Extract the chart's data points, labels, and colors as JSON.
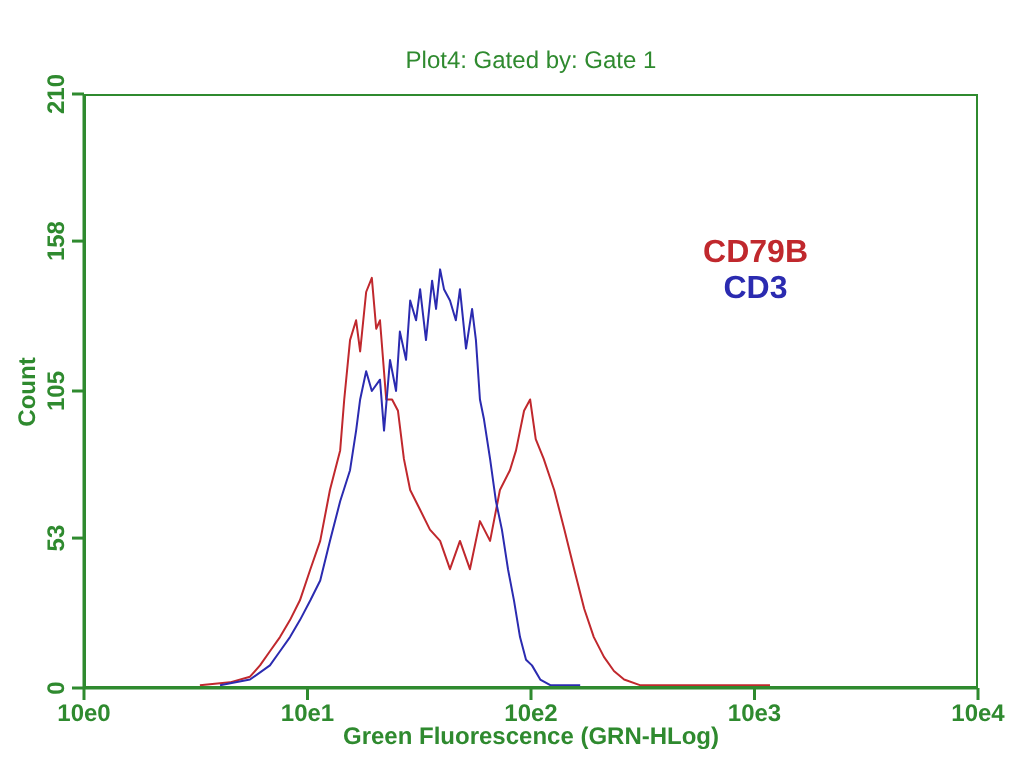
{
  "chart_data": {
    "type": "line",
    "title": "Plot4:  Gated by: Gate 1",
    "xlabel": "Green Fluorescence (GRN-HLog)",
    "ylabel": "Count",
    "log": "x",
    "xlim": [
      10,
      100000
    ],
    "xticks": [
      {
        "value": 10,
        "label": "10e0"
      },
      {
        "value": 100,
        "label": "10e1"
      },
      {
        "value": 1000,
        "label": "10e2"
      },
      {
        "value": 10000,
        "label": "10e3"
      },
      {
        "value": 100000,
        "label": "10e4"
      }
    ],
    "ylim": [
      0,
      210
    ],
    "yticks": [
      0,
      53,
      105,
      158,
      210
    ],
    "grid": false,
    "legend": "top right",
    "marker": "none",
    "line_style": "solid",
    "series": [
      {
        "name": "CD79B",
        "color": "#c0282d",
        "x": [
          33,
          45,
          55.3,
          61.3,
          67.9,
          75.3,
          83.5,
          92.5,
          103,
          114,
          126,
          140,
          146,
          155,
          165,
          172,
          183,
          194,
          203,
          211,
          225,
          239,
          254,
          270,
          288,
          319,
          353,
          392,
          434,
          481,
          533,
          591,
          656,
          726,
          805,
          857,
          931,
          991,
          1050,
          1140,
          1270,
          1410,
          1560,
          1730,
          1910,
          2120,
          2350,
          2610,
          3070,
          4640,
          8610,
          11730
        ],
        "values": [
          1,
          2,
          4,
          8,
          13,
          18,
          24,
          31,
          42,
          52,
          70,
          84,
          102,
          123,
          130,
          119,
          140,
          145,
          127,
          130,
          102,
          102,
          98,
          81,
          70,
          63,
          56,
          52,
          42,
          52,
          42,
          59,
          52,
          70,
          77,
          84,
          98,
          102,
          88,
          81,
          70,
          56,
          42,
          28,
          18,
          11,
          6,
          3,
          1,
          1,
          1,
          1
        ]
      },
      {
        "name": "CD3",
        "color": "#2b2bb0",
        "x": [
          40.6,
          55.3,
          67.9,
          75.3,
          83.5,
          92.5,
          103,
          114,
          126,
          140,
          155,
          165,
          172,
          183,
          194,
          211,
          220,
          234,
          249,
          259,
          276,
          288,
          306,
          319,
          339,
          361,
          376,
          392,
          408,
          434,
          461,
          481,
          512,
          545,
          567,
          591,
          616,
          656,
          697,
          741,
          789,
          839,
          893,
          950,
          1010,
          1100,
          1220,
          1660
        ],
        "values": [
          1,
          3,
          8,
          13,
          18,
          24,
          31,
          38,
          52,
          66,
          77,
          91,
          102,
          112,
          105,
          109,
          91,
          116,
          105,
          126,
          116,
          137,
          130,
          141,
          123,
          144,
          134,
          148,
          141,
          137,
          130,
          141,
          120,
          134,
          123,
          102,
          95,
          81,
          66,
          56,
          42,
          31,
          18,
          10,
          8,
          3,
          1,
          1
        ]
      }
    ]
  }
}
